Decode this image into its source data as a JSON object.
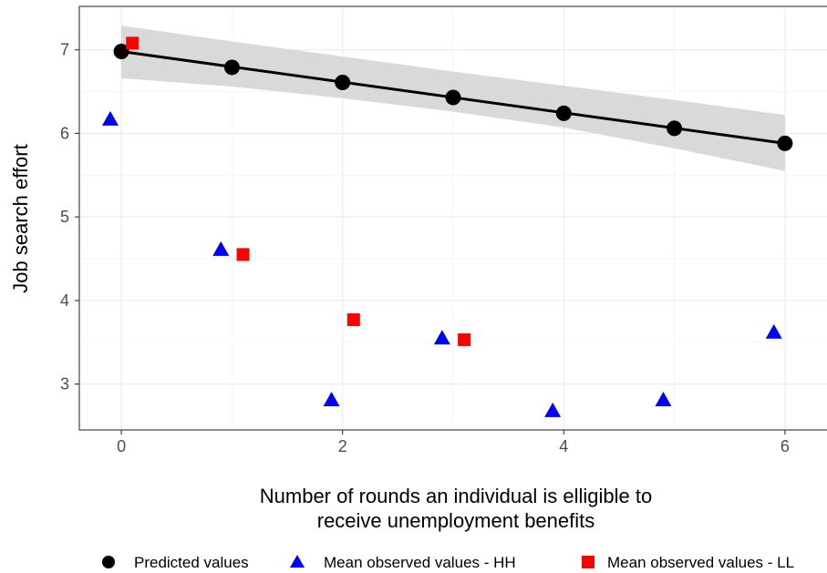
{
  "chart_data": {
    "type": "scatter",
    "title": "",
    "xlabel_lines": [
      "Number of rounds an individual is elligible to",
      "receive unemployment benefits"
    ],
    "ylabel": "Job search effort",
    "xlim": [
      -0.38,
      6.38
    ],
    "ylim": [
      2.45,
      7.52
    ],
    "xticks": [
      0,
      2,
      4,
      6
    ],
    "yticks": [
      3,
      4,
      5,
      6,
      7
    ],
    "xticks_minor": [
      1,
      3,
      5
    ],
    "yticks_minor": [
      2.5,
      3.5,
      4.5,
      5.5,
      6.5,
      7.5
    ],
    "grid": true,
    "legend_position": "bottom",
    "colors": {
      "predicted": "#000000",
      "hh": "#0000ff",
      "ll": "#ff0000",
      "band": "#d9d9d9"
    },
    "fit_line": {
      "x": [
        0,
        6
      ],
      "y": [
        6.98,
        5.88
      ]
    },
    "confidence_band": {
      "x": [
        0,
        1,
        2,
        3,
        4,
        5,
        6
      ],
      "upper": [
        7.29,
        7.1,
        6.92,
        6.74,
        6.57,
        6.4,
        6.22
      ],
      "lower": [
        6.66,
        6.56,
        6.42,
        6.26,
        6.07,
        5.82,
        5.55
      ]
    },
    "series": [
      {
        "name": "Predicted values",
        "marker": "circle",
        "color": "#000000",
        "x": [
          0,
          1,
          2,
          3,
          4,
          5,
          6
        ],
        "y": [
          6.98,
          6.79,
          6.61,
          6.43,
          6.24,
          6.06,
          5.88
        ]
      },
      {
        "name": "Mean observed values - HH",
        "marker": "triangle",
        "color": "#0000ff",
        "x": [
          -0.1,
          0.9,
          1.9,
          2.9,
          3.9,
          4.9,
          5.9
        ],
        "y": [
          6.17,
          4.61,
          2.81,
          3.55,
          2.68,
          2.81,
          3.62
        ]
      },
      {
        "name": "Mean observed values - LL",
        "marker": "square",
        "color": "#ff0000",
        "x": [
          0.1,
          1.1,
          2.1,
          3.1
        ],
        "y": [
          7.08,
          4.55,
          3.77,
          3.53
        ]
      }
    ]
  }
}
